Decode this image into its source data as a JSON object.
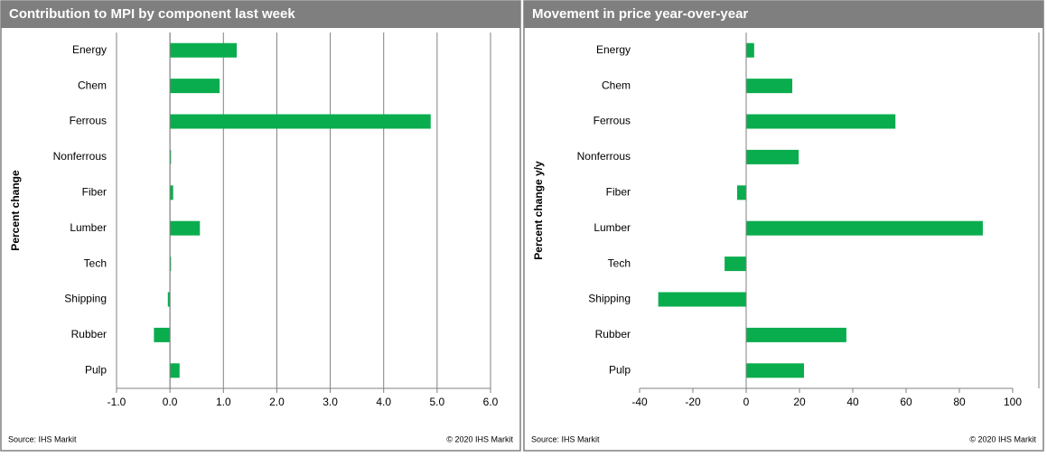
{
  "chart_data": [
    {
      "type": "bar",
      "orientation": "horizontal",
      "title": "Contribution to MPI by component last week",
      "y_label": "Percent change",
      "categories": [
        "Energy",
        "Chem",
        "Ferrous",
        "Nonferrous",
        "Fiber",
        "Lumber",
        "Tech",
        "Shipping",
        "Rubber",
        "Pulp"
      ],
      "values": [
        1.25,
        0.93,
        4.88,
        0.02,
        0.06,
        0.56,
        0.02,
        -0.04,
        -0.3,
        0.18
      ],
      "color": "#0aad4e",
      "xlim": [
        -1,
        6
      ],
      "xticks": [
        {
          "value": -1,
          "label": "-1.0"
        },
        {
          "value": 0,
          "label": "0.0"
        },
        {
          "value": 1,
          "label": "1.0"
        },
        {
          "value": 2,
          "label": "2.0"
        },
        {
          "value": 3,
          "label": "3.0"
        },
        {
          "value": 4,
          "label": "4.0"
        },
        {
          "value": 5,
          "label": "5.0"
        },
        {
          "value": 6,
          "label": "6.0"
        }
      ],
      "grid": true,
      "source": "Source:  IHS Markit",
      "copyright": "© 2020  IHS Markit"
    },
    {
      "type": "bar",
      "orientation": "horizontal",
      "title": "Movement in price year-over-year",
      "y_label": "Percent change y/y",
      "categories": [
        "Energy",
        "Chem",
        "Ferrous",
        "Nonferrous",
        "Fiber",
        "Lumber",
        "Tech",
        "Shipping",
        "Rubber",
        "Pulp"
      ],
      "values": [
        3,
        17.3,
        56,
        19.7,
        -3.4,
        88.8,
        -8.1,
        -33,
        37.6,
        21.7
      ],
      "color": "#0aad4e",
      "xlim": [
        -40,
        100
      ],
      "xticks": [
        -40,
        -20,
        0,
        20,
        40,
        60,
        80,
        100
      ],
      "grid": false,
      "source": "Source:  IHS Markit",
      "copyright": "© 2020  IHS Markit"
    }
  ]
}
